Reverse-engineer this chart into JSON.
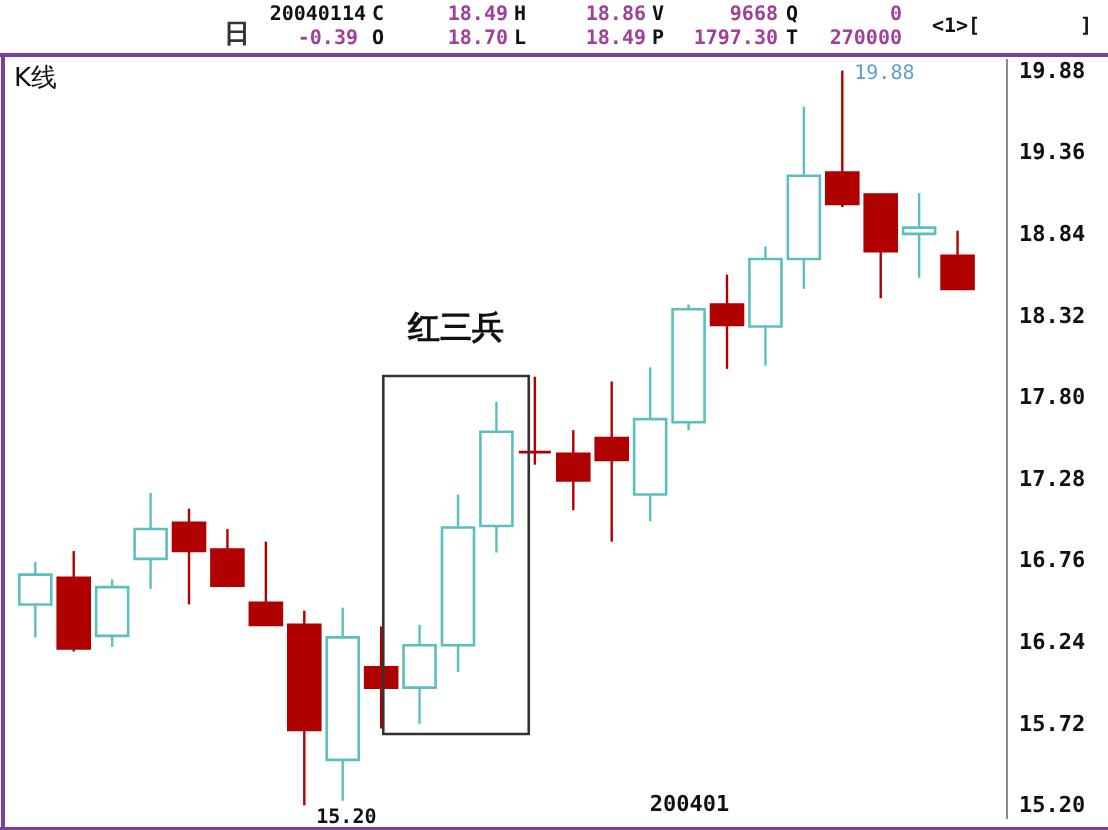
{
  "chart_data": {
    "type": "candlestick",
    "title": "K线",
    "categories": [
      null,
      null,
      null,
      null,
      null,
      null,
      null,
      null,
      null,
      null,
      null,
      null,
      null,
      null,
      null,
      null,
      null,
      "200401",
      null,
      null,
      null,
      null,
      null,
      null,
      null
    ],
    "ohlc": [
      [
        16.48,
        16.75,
        16.27,
        16.67
      ],
      [
        16.65,
        16.82,
        16.18,
        16.2
      ],
      [
        16.28,
        16.64,
        16.21,
        16.59
      ],
      [
        16.77,
        17.19,
        16.58,
        16.96
      ],
      [
        17.0,
        17.09,
        16.48,
        16.82
      ],
      [
        16.83,
        16.96,
        16.59,
        16.6
      ],
      [
        16.49,
        16.88,
        16.35,
        16.35
      ],
      [
        16.35,
        16.44,
        15.2,
        15.68
      ],
      [
        15.49,
        16.46,
        15.23,
        16.27
      ],
      [
        16.08,
        16.34,
        15.69,
        15.95
      ],
      [
        15.95,
        16.35,
        15.72,
        16.22
      ],
      [
        16.22,
        17.18,
        16.05,
        16.97
      ],
      [
        16.98,
        17.77,
        16.81,
        17.58
      ],
      [
        17.45,
        17.93,
        17.37,
        17.45
      ],
      [
        17.44,
        17.59,
        17.08,
        17.27
      ],
      [
        17.54,
        17.9,
        16.88,
        17.4
      ],
      [
        17.18,
        17.99,
        17.01,
        17.66
      ],
      [
        17.64,
        18.39,
        17.59,
        18.36
      ],
      [
        18.39,
        18.58,
        17.98,
        18.26
      ],
      [
        18.25,
        18.76,
        18.0,
        18.68
      ],
      [
        18.68,
        19.65,
        18.49,
        19.21
      ],
      [
        19.23,
        19.88,
        19.01,
        19.03
      ],
      [
        19.09,
        19.09,
        18.43,
        18.73
      ],
      [
        18.84,
        19.1,
        18.56,
        18.88
      ],
      [
        18.7,
        18.86,
        18.49,
        18.49
      ]
    ],
    "colors": [
      "#5cbfbf",
      "#b00000",
      "#5cbfbf",
      "#5cbfbf",
      "#b00000",
      "#b00000",
      "#b00000",
      "#b00000",
      "#5cbfbf",
      "#b00000",
      "#5cbfbf",
      "#5cbfbf",
      "#5cbfbf",
      "#b00000",
      "#b00000",
      "#b00000",
      "#5cbfbf",
      "#5cbfbf",
      "#b00000",
      "#5cbfbf",
      "#5cbfbf",
      "#b00000",
      "#b00000",
      "#5cbfbf",
      "#b00000"
    ],
    "ylim": [
      15.12,
      19.96
    ],
    "yticks": [
      {
        "value": 15.2,
        "label": "15.20"
      },
      15.72,
      16.24,
      16.76,
      17.28,
      {
        "value": 17.8,
        "label": "17.80"
      },
      18.32,
      18.84,
      19.36,
      19.88
    ],
    "annotations": [
      "20040114",
      "C",
      "18.49",
      "H",
      "18.86",
      "V",
      "9668",
      "Q",
      "0",
      "日",
      "-0.39",
      "O",
      "18.70",
      "L",
      "18.49",
      "P",
      "1797.30",
      "T",
      "270000",
      "<1>[",
      "]",
      "红三兵",
      "19.88",
      "15.20"
    ]
  }
}
